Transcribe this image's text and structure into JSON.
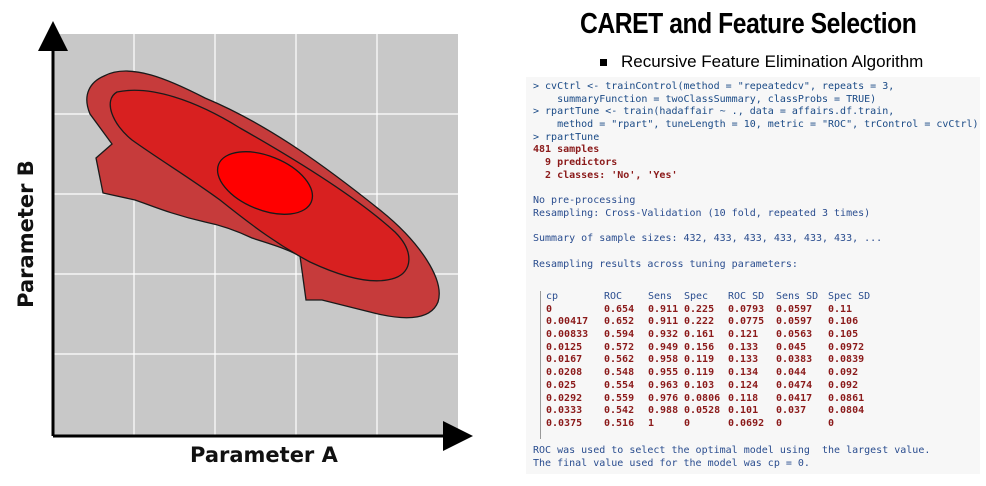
{
  "diagram": {
    "x_axis_label": "Parameter A",
    "y_axis_label": "Parameter B",
    "colors": {
      "plot_bg": "#c8c8c8",
      "outer_region": "#c63b3b",
      "middle_region": "#d82020",
      "inner_region": "#ff0000",
      "grid": "#ffffff"
    }
  },
  "slide": {
    "title": "CARET and Feature Selection",
    "bullet": "Recursive Feature Elimination Algorithm"
  },
  "console": {
    "lines": [
      {
        "text": "> cvCtrl <- trainControl(method = \"repeatedcv\", repeats = 3,",
        "kind": "cmd"
      },
      {
        "text": "    summaryFunction = twoClassSummary, classProbs = TRUE)",
        "kind": "cmd"
      },
      {
        "text": "> rpartTune <- train(hadaffair ~ ., data = affairs.df.train,",
        "kind": "cmd"
      },
      {
        "text": "    method = \"rpart\", tuneLength = 10, metric = \"ROC\", trControl = cvCtrl)",
        "kind": "cmd"
      },
      {
        "text": "> rpartTune",
        "kind": "cmd"
      },
      {
        "text": "481 samples",
        "kind": "num"
      },
      {
        "text": "  9 predictors",
        "kind": "num"
      },
      {
        "text": "  2 classes: 'No', 'Yes'",
        "kind": "num"
      },
      {
        "text": "",
        "kind": "out"
      },
      {
        "text": "No pre-processing",
        "kind": "blue"
      },
      {
        "text": "Resampling: Cross-Validation (10 fold, repeated 3 times)",
        "kind": "blue"
      },
      {
        "text": "",
        "kind": "out"
      },
      {
        "text": "Summary of sample sizes: 432, 433, 433, 433, 433, 433, ...",
        "kind": "blue"
      },
      {
        "text": "",
        "kind": "out"
      },
      {
        "text": "Resampling results across tuning parameters:",
        "kind": "blue"
      }
    ],
    "table_header": [
      "cp",
      "ROC",
      "Sens",
      "Spec",
      "ROC SD",
      "Sens SD",
      "Spec SD"
    ],
    "table_rows": [
      [
        "0",
        "0.654",
        "0.911",
        "0.225",
        "0.0793",
        "0.0597",
        "0.11"
      ],
      [
        "0.00417",
        "0.652",
        "0.911",
        "0.222",
        "0.0775",
        "0.0597",
        "0.106"
      ],
      [
        "0.00833",
        "0.594",
        "0.932",
        "0.161",
        "0.121",
        "0.0563",
        "0.105"
      ],
      [
        "0.0125",
        "0.572",
        "0.949",
        "0.156",
        "0.133",
        "0.045",
        "0.0972"
      ],
      [
        "0.0167",
        "0.562",
        "0.958",
        "0.119",
        "0.133",
        "0.0383",
        "0.0839"
      ],
      [
        "0.0208",
        "0.548",
        "0.955",
        "0.119",
        "0.134",
        "0.044",
        "0.092"
      ],
      [
        "0.025",
        "0.554",
        "0.963",
        "0.103",
        "0.124",
        "0.0474",
        "0.092"
      ],
      [
        "0.0292",
        "0.559",
        "0.976",
        "0.0806",
        "0.118",
        "0.0417",
        "0.0861"
      ],
      [
        "0.0333",
        "0.542",
        "0.988",
        "0.0528",
        "0.101",
        "0.037",
        "0.0804"
      ],
      [
        "0.0375",
        "0.516",
        "1",
        "0",
        "0.0692",
        "0",
        "0"
      ]
    ],
    "footer": [
      "ROC was used to select the optimal model using  the largest value.",
      "The final value used for the model was cp = 0."
    ]
  }
}
